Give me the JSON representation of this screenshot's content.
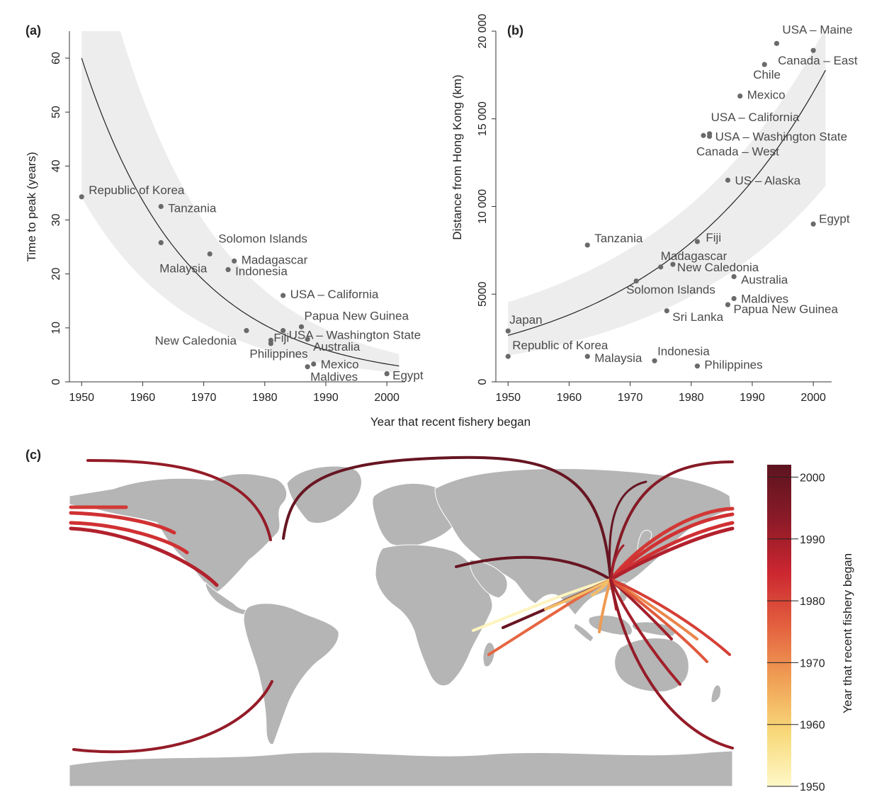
{
  "chart_data": [
    {
      "panel": "(a)",
      "type": "scatter",
      "ylabel": "Time to peak (years)",
      "xlim": [
        1948,
        2003
      ],
      "ylim": [
        0,
        65
      ],
      "xticks": [
        1950,
        1960,
        1970,
        1980,
        1990,
        2000
      ],
      "yticks": [
        0,
        10,
        20,
        30,
        40,
        50,
        60
      ],
      "fit": "exponential decay with shaded confidence band",
      "points": [
        {
          "label": "Republic of Korea",
          "x": 1950,
          "y": 34.3
        },
        {
          "label": "Tanzania",
          "x": 1963,
          "y": 32.5
        },
        {
          "label": "Malaysia",
          "x": 1963,
          "y": 25.8
        },
        {
          "label": "Solomon Islands",
          "x": 1971,
          "y": 23.7
        },
        {
          "label": "Madagascar",
          "x": 1975,
          "y": 22.4
        },
        {
          "label": "Indonesia",
          "x": 1974,
          "y": 20.8
        },
        {
          "label": "USA – California",
          "x": 1983,
          "y": 16.0
        },
        {
          "label": "Papua New Guinea",
          "x": 1986,
          "y": 10.2
        },
        {
          "label": "New Caledonia",
          "x": 1977,
          "y": 9.5
        },
        {
          "label": "USA – Washington State",
          "x": 1983,
          "y": 9.5
        },
        {
          "label": "Australia",
          "x": 1987,
          "y": 7.9
        },
        {
          "label": "Fiji",
          "x": 1981,
          "y": 7.7
        },
        {
          "label": "Philippines",
          "x": 1981,
          "y": 7.1
        },
        {
          "label": "Mexico",
          "x": 1988,
          "y": 3.3
        },
        {
          "label": "Maldives",
          "x": 1987,
          "y": 2.8
        },
        {
          "label": "Egypt",
          "x": 2000,
          "y": 1.5
        }
      ]
    },
    {
      "panel": "(b)",
      "type": "scatter",
      "ylabel": "Distance from Hong Kong (km)",
      "xlim": [
        1948,
        2003
      ],
      "ylim": [
        0,
        20000
      ],
      "xticks": [
        1950,
        1960,
        1970,
        1980,
        1990,
        2000
      ],
      "yticks": [
        0,
        5000,
        10000,
        15000,
        20000
      ],
      "ytick_labels": [
        "0",
        "5000",
        "10 000",
        "15 000",
        "20 000"
      ],
      "fit": "exponential growth with shaded confidence band",
      "points": [
        {
          "label": "USA – Maine",
          "x": 1994,
          "y": 19300
        },
        {
          "label": "Canada – East",
          "x": 2000,
          "y": 18900
        },
        {
          "label": "Chile",
          "x": 1992,
          "y": 18100
        },
        {
          "label": "Mexico",
          "x": 1988,
          "y": 16300
        },
        {
          "label": "USA – California",
          "x": 1983,
          "y": 14150
        },
        {
          "label": "USA – Washington State",
          "x": 1983,
          "y": 14000
        },
        {
          "label": "Canada – West",
          "x": 1982,
          "y": 14050
        },
        {
          "label": "US – Alaska",
          "x": 1986,
          "y": 11500
        },
        {
          "label": "Egypt",
          "x": 2000,
          "y": 9000
        },
        {
          "label": "Tanzania",
          "x": 1963,
          "y": 7800
        },
        {
          "label": "Fiji",
          "x": 1981,
          "y": 8000
        },
        {
          "label": "Madagascar",
          "x": 1975,
          "y": 6550
        },
        {
          "label": "New Caledonia",
          "x": 1977,
          "y": 6700
        },
        {
          "label": "Australia",
          "x": 1987,
          "y": 6000
        },
        {
          "label": "Solomon Islands",
          "x": 1971,
          "y": 5750
        },
        {
          "label": "Maldives",
          "x": 1987,
          "y": 4750
        },
        {
          "label": "Papua New Guinea",
          "x": 1986,
          "y": 4400
        },
        {
          "label": "Sri Lanka",
          "x": 1976,
          "y": 4050
        },
        {
          "label": "Japan",
          "x": 1950,
          "y": 2900
        },
        {
          "label": "Republic of Korea",
          "x": 1950,
          "y": 1450
        },
        {
          "label": "Malaysia",
          "x": 1963,
          "y": 1450
        },
        {
          "label": "Indonesia",
          "x": 1974,
          "y": 1200
        },
        {
          "label": "Philippines",
          "x": 1981,
          "y": 900
        }
      ]
    },
    {
      "panel": "(c)",
      "type": "map",
      "origin": "Hong Kong",
      "colorbar": {
        "label": "Year that recent fishery began",
        "ticks": [
          1950,
          1960,
          1970,
          1980,
          1990,
          2000
        ],
        "range": [
          1950,
          2002
        ],
        "colors": [
          "#fff8c8",
          "#f8d97a",
          "#f0a055",
          "#e3603f",
          "#cb2630",
          "#8a1a27",
          "#5c1420"
        ]
      },
      "routes": [
        {
          "destination": "Japan",
          "year": 1950
        },
        {
          "destination": "Republic of Korea",
          "year": 1950
        },
        {
          "destination": "Tanzania",
          "year": 1963
        },
        {
          "destination": "Malaysia",
          "year": 1963
        },
        {
          "destination": "Solomon Islands",
          "year": 1971
        },
        {
          "destination": "Indonesia",
          "year": 1974
        },
        {
          "destination": "Madagascar",
          "year": 1975
        },
        {
          "destination": "Sri Lanka",
          "year": 1976
        },
        {
          "destination": "New Caledonia",
          "year": 1977
        },
        {
          "destination": "Fiji",
          "year": 1981
        },
        {
          "destination": "Philippines",
          "year": 1981
        },
        {
          "destination": "Canada – West",
          "year": 1982
        },
        {
          "destination": "USA – California",
          "year": 1983
        },
        {
          "destination": "USA – Washington State",
          "year": 1983
        },
        {
          "destination": "Papua New Guinea",
          "year": 1986
        },
        {
          "destination": "US – Alaska",
          "year": 1986
        },
        {
          "destination": "Australia",
          "year": 1987
        },
        {
          "destination": "Maldives",
          "year": 1987
        },
        {
          "destination": "Mexico",
          "year": 1988
        },
        {
          "destination": "Chile",
          "year": 1992
        },
        {
          "destination": "USA – Maine",
          "year": 1994
        },
        {
          "destination": "Canada – East",
          "year": 2000
        },
        {
          "destination": "Egypt",
          "year": 2000
        }
      ]
    }
  ],
  "shared_xlabel": "Year that recent fishery began"
}
